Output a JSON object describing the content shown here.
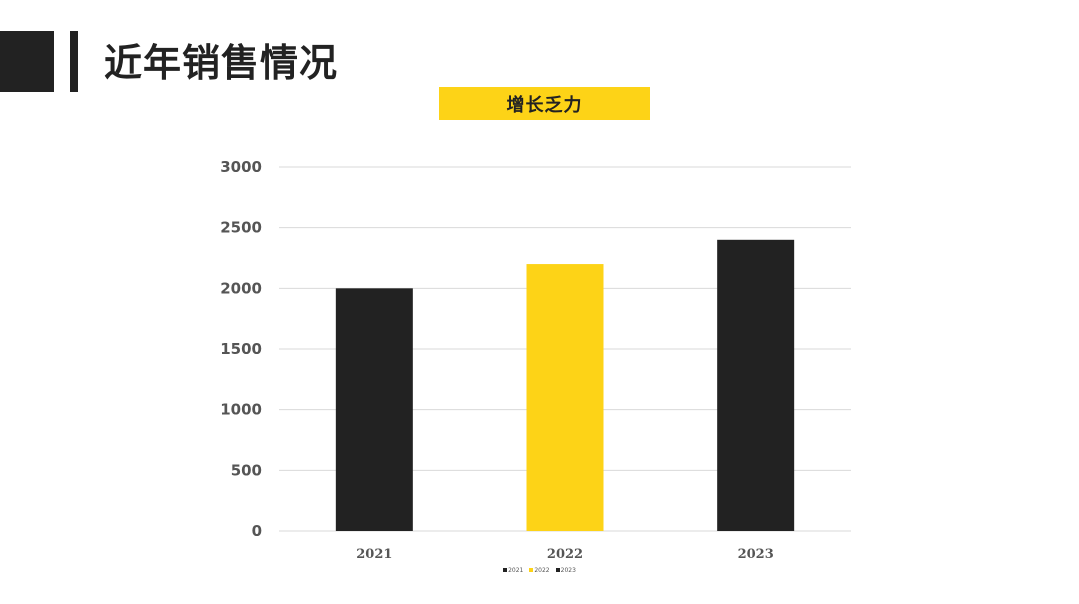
{
  "header": {
    "title": "近年销售情况",
    "subtitle": "增长乏力"
  },
  "colors": {
    "dark": "#222222",
    "accent": "#fdd317",
    "grid": "#d9d9d9",
    "axis_text": "#555555"
  },
  "chart_data": {
    "type": "bar",
    "categories": [
      "2021",
      "2022",
      "2023"
    ],
    "values": [
      2000,
      2200,
      2400
    ],
    "bar_colors": [
      "#222222",
      "#fdd317",
      "#222222"
    ],
    "ylim": [
      0,
      3000
    ],
    "yticks": [
      "0",
      "500",
      "1000",
      "1500",
      "2000",
      "2500",
      "3000"
    ],
    "grid": true,
    "legend": {
      "placement": "bottom",
      "entries": [
        "2021",
        "2022",
        "2023"
      ]
    }
  }
}
